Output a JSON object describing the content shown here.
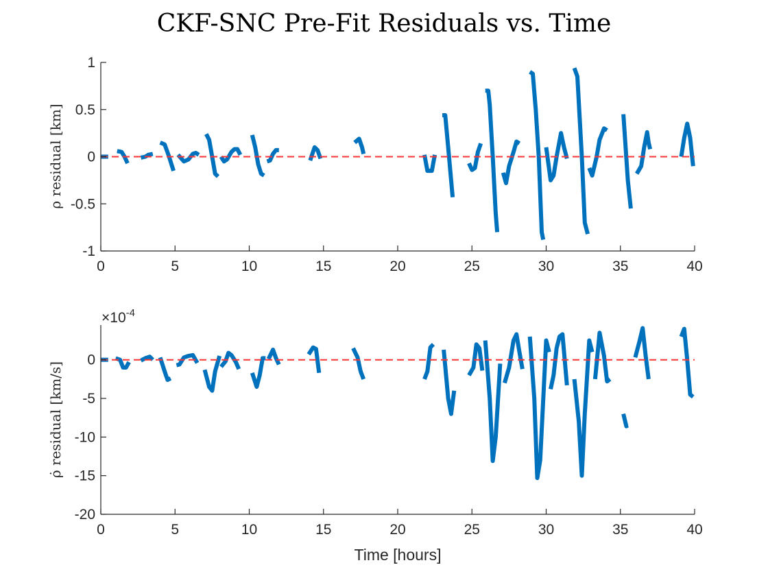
{
  "title": "CKF-SNC Pre-Fit Residuals vs. Time",
  "colors": {
    "series": "#0072BD",
    "zero_line": "#FF3333",
    "axes": "#262626"
  },
  "chart_data": [
    {
      "type": "line",
      "title": "CKF-SNC Pre-Fit Residuals vs. Time",
      "xlabel": "",
      "ylabel": "ρ residual [km]",
      "xlim": [
        0,
        40
      ],
      "ylim": [
        -1,
        1
      ],
      "xticks": [
        0,
        5,
        10,
        15,
        20,
        25,
        30,
        35,
        40
      ],
      "yticks": [
        -1,
        -0.5,
        0,
        0.5,
        1
      ],
      "ytick_labels": [
        "-1",
        "-0.5",
        "0",
        "0.5",
        "1"
      ],
      "reference_line": {
        "y": 0,
        "style": "dashed"
      },
      "grid": false,
      "segments": [
        [
          [
            0,
            0
          ],
          [
            0.5,
            0
          ]
        ],
        [
          [
            1.1,
            0.06
          ],
          [
            1.4,
            0.05
          ],
          [
            1.6,
            0.0
          ],
          [
            1.8,
            -0.07
          ]
        ],
        [
          [
            2.7,
            -0.01
          ],
          [
            3.0,
            0.0
          ],
          [
            3.2,
            0.02
          ],
          [
            3.5,
            0.03
          ]
        ],
        [
          [
            4.0,
            0.15
          ],
          [
            4.3,
            0.13
          ],
          [
            4.6,
            0.0
          ],
          [
            4.8,
            -0.1
          ],
          [
            4.9,
            -0.15
          ]
        ],
        [
          [
            5.2,
            0.02
          ],
          [
            5.6,
            -0.05
          ],
          [
            5.9,
            -0.03
          ],
          [
            6.2,
            0.03
          ],
          [
            6.4,
            0.04
          ],
          [
            6.6,
            0.02
          ]
        ],
        [
          [
            7.1,
            0.24
          ],
          [
            7.3,
            0.18
          ],
          [
            7.5,
            0.0
          ],
          [
            7.7,
            -0.18
          ],
          [
            7.9,
            -0.21
          ]
        ],
        [
          [
            8.1,
            0.0
          ],
          [
            8.3,
            -0.05
          ],
          [
            8.5,
            -0.03
          ],
          [
            8.8,
            0.05
          ],
          [
            9.0,
            0.08
          ],
          [
            9.2,
            0.08
          ],
          [
            9.4,
            0.02
          ]
        ],
        [
          [
            10.2,
            0.23
          ],
          [
            10.4,
            0.1
          ],
          [
            10.6,
            -0.08
          ],
          [
            10.8,
            -0.18
          ],
          [
            11.0,
            -0.2
          ]
        ],
        [
          [
            11.2,
            -0.05
          ],
          [
            11.4,
            -0.04
          ],
          [
            11.6,
            0.03
          ],
          [
            11.8,
            0.07
          ],
          [
            12.0,
            0.07
          ]
        ],
        [
          [
            14.1,
            -0.04
          ],
          [
            14.4,
            0.1
          ],
          [
            14.6,
            0.07
          ],
          [
            14.8,
            -0.02
          ]
        ],
        [
          [
            17.1,
            0.15
          ],
          [
            17.4,
            0.19
          ],
          [
            17.6,
            0.1
          ],
          [
            17.7,
            0.03
          ]
        ],
        [
          [
            21.8,
            0.02
          ],
          [
            22.0,
            -0.15
          ],
          [
            22.3,
            -0.15
          ],
          [
            22.5,
            0.02
          ]
        ],
        [
          [
            23.0,
            0.44
          ],
          [
            23.2,
            0.44
          ],
          [
            23.4,
            0.1
          ],
          [
            23.6,
            -0.25
          ],
          [
            23.7,
            -0.43
          ]
        ],
        [
          [
            24.8,
            -0.07
          ],
          [
            25.0,
            -0.14
          ],
          [
            25.2,
            -0.12
          ],
          [
            25.4,
            0.05
          ],
          [
            25.6,
            0.14
          ]
        ],
        [
          [
            25.9,
            0.7
          ],
          [
            26.1,
            0.7
          ],
          [
            26.2,
            0.55
          ],
          [
            26.4,
            0.0
          ],
          [
            26.6,
            -0.6
          ],
          [
            26.7,
            -0.8
          ]
        ],
        [
          [
            27.1,
            -0.17
          ],
          [
            27.3,
            -0.28
          ],
          [
            27.5,
            -0.1
          ],
          [
            27.8,
            0.05
          ],
          [
            28.0,
            0.16
          ],
          [
            28.2,
            0.14
          ]
        ],
        [
          [
            28.9,
            0.9
          ],
          [
            29.1,
            0.88
          ],
          [
            29.3,
            0.5
          ],
          [
            29.5,
            0.0
          ],
          [
            29.7,
            -0.8
          ],
          [
            29.8,
            -0.88
          ]
        ],
        [
          [
            30.0,
            0.1
          ],
          [
            30.3,
            -0.25
          ],
          [
            30.5,
            -0.2
          ],
          [
            30.7,
            0.0
          ],
          [
            31.0,
            0.25
          ],
          [
            31.2,
            0.1
          ],
          [
            31.4,
            -0.02
          ]
        ],
        [
          [
            31.9,
            0.94
          ],
          [
            32.1,
            0.85
          ],
          [
            32.4,
            0.0
          ],
          [
            32.6,
            -0.7
          ],
          [
            32.8,
            -0.82
          ]
        ],
        [
          [
            32.9,
            -0.12
          ],
          [
            33.1,
            -0.2
          ],
          [
            33.4,
            0.0
          ],
          [
            33.6,
            0.18
          ],
          [
            33.9,
            0.3
          ],
          [
            34.1,
            0.28
          ]
        ],
        [
          [
            35.2,
            0.45
          ],
          [
            35.5,
            -0.25
          ],
          [
            35.7,
            -0.55
          ]
        ],
        [
          [
            36.1,
            -0.18
          ],
          [
            36.4,
            -0.1
          ],
          [
            36.6,
            0.1
          ],
          [
            36.8,
            0.26
          ],
          [
            36.9,
            0.15
          ],
          [
            37.0,
            0.08
          ]
        ],
        [
          [
            39.1,
            0.0
          ],
          [
            39.3,
            0.2
          ],
          [
            39.5,
            0.35
          ],
          [
            39.7,
            0.2
          ],
          [
            39.9,
            -0.1
          ]
        ]
      ]
    },
    {
      "type": "line",
      "xlabel": "Time [hours]",
      "ylabel": "ρ̇ residual [km/s]",
      "exponent_prefix": "×10",
      "exponent": "-4",
      "xlim": [
        0,
        40
      ],
      "ylim": [
        -20,
        4.5
      ],
      "xticks": [
        0,
        5,
        10,
        15,
        20,
        25,
        30,
        35,
        40
      ],
      "yticks": [
        -20,
        -15,
        -10,
        -5,
        0
      ],
      "ytick_labels": [
        "-20",
        "-15",
        "-10",
        "-5",
        "0"
      ],
      "reference_line": {
        "y": 0,
        "style": "dashed"
      },
      "grid": false,
      "segments": [
        [
          [
            0,
            0
          ],
          [
            0.5,
            0
          ]
        ],
        [
          [
            1.0,
            0.2
          ],
          [
            1.3,
            0.0
          ],
          [
            1.5,
            -1.0
          ],
          [
            1.7,
            -1.0
          ],
          [
            1.9,
            -0.3
          ]
        ],
        [
          [
            2.7,
            -0.1
          ],
          [
            3.0,
            0.2
          ],
          [
            3.3,
            0.4
          ],
          [
            3.5,
            0.0
          ]
        ],
        [
          [
            4.0,
            0.3
          ],
          [
            4.3,
            -1.5
          ],
          [
            4.5,
            -2.6
          ],
          [
            4.7,
            -2.4
          ]
        ],
        [
          [
            5.1,
            -0.7
          ],
          [
            5.3,
            -0.6
          ],
          [
            5.6,
            0.3
          ],
          [
            5.9,
            0.5
          ],
          [
            6.2,
            0.6
          ],
          [
            6.5,
            -0.4
          ]
        ],
        [
          [
            7.0,
            -1.3
          ],
          [
            7.3,
            -3.5
          ],
          [
            7.5,
            -4.0
          ],
          [
            7.7,
            -1.5
          ],
          [
            8.0,
            0.5
          ]
        ],
        [
          [
            8.1,
            -0.9
          ],
          [
            8.4,
            -0.2
          ],
          [
            8.6,
            0.9
          ],
          [
            8.8,
            0.6
          ],
          [
            9.1,
            -0.3
          ],
          [
            9.3,
            -1.2
          ]
        ],
        [
          [
            10.2,
            -1.7
          ],
          [
            10.5,
            -3.5
          ],
          [
            10.7,
            -2.0
          ],
          [
            10.9,
            0.2
          ],
          [
            11.1,
            0.2
          ]
        ],
        [
          [
            11.3,
            0.1
          ],
          [
            11.6,
            1.3
          ],
          [
            11.8,
            0.2
          ],
          [
            12.0,
            -0.6
          ]
        ],
        [
          [
            14.0,
            0.7
          ],
          [
            14.3,
            1.6
          ],
          [
            14.5,
            1.4
          ],
          [
            14.7,
            -1.7
          ]
        ],
        [
          [
            17.0,
            1.5
          ],
          [
            17.3,
            0.3
          ],
          [
            17.5,
            -1.5
          ],
          [
            17.7,
            -2.5
          ]
        ],
        [
          [
            21.8,
            -2.5
          ],
          [
            22.0,
            -1.5
          ],
          [
            22.2,
            1.6
          ],
          [
            22.4,
            2.0
          ]
        ],
        [
          [
            23.1,
            1.3
          ],
          [
            23.4,
            -5.0
          ],
          [
            23.6,
            -7.0
          ],
          [
            23.8,
            -4.0
          ]
        ],
        [
          [
            24.8,
            -2.0
          ],
          [
            25.1,
            -1.0
          ],
          [
            25.3,
            2.0
          ],
          [
            25.5,
            1.5
          ],
          [
            25.7,
            -1.4
          ]
        ],
        [
          [
            25.9,
            2.5
          ],
          [
            26.2,
            -5.0
          ],
          [
            26.4,
            -13.1
          ],
          [
            26.6,
            -10.0
          ],
          [
            26.9,
            -0.5
          ]
        ],
        [
          [
            27.2,
            -3.0
          ],
          [
            27.5,
            -1.0
          ],
          [
            27.8,
            2.5
          ],
          [
            28.0,
            3.3
          ],
          [
            28.2,
            1.0
          ],
          [
            28.4,
            -1.2
          ]
        ],
        [
          [
            28.9,
            3.0
          ],
          [
            29.2,
            -5.0
          ],
          [
            29.4,
            -15.3
          ],
          [
            29.6,
            -13.0
          ],
          [
            30.0,
            2.5
          ],
          [
            30.2,
            1.0
          ]
        ],
        [
          [
            30.3,
            -3.8
          ],
          [
            30.5,
            -2.0
          ],
          [
            30.7,
            1.5
          ],
          [
            30.9,
            3.0
          ],
          [
            31.1,
            3.3
          ],
          [
            31.4,
            -3.3
          ]
        ],
        [
          [
            31.9,
            -2.5
          ],
          [
            32.2,
            -8.0
          ],
          [
            32.4,
            -15.0
          ],
          [
            32.6,
            -7.0
          ],
          [
            32.9,
            2.5
          ],
          [
            33.1,
            1.0
          ]
        ],
        [
          [
            33.3,
            -2.5
          ],
          [
            33.6,
            3.5
          ],
          [
            33.9,
            0.5
          ],
          [
            34.1,
            -2.8
          ],
          [
            34.3,
            -2.5
          ]
        ],
        [
          [
            35.2,
            -7.0
          ],
          [
            35.4,
            -8.6
          ],
          [
            35.5,
            -8.5
          ]
        ],
        [
          [
            36.0,
            0.3
          ],
          [
            36.3,
            2.5
          ],
          [
            36.5,
            4.1
          ],
          [
            36.7,
            0.5
          ],
          [
            36.9,
            -2.5
          ]
        ],
        [
          [
            39.1,
            3.0
          ],
          [
            39.3,
            4.0
          ],
          [
            39.5,
            0.0
          ],
          [
            39.7,
            -4.5
          ],
          [
            39.9,
            -4.8
          ]
        ]
      ]
    }
  ]
}
